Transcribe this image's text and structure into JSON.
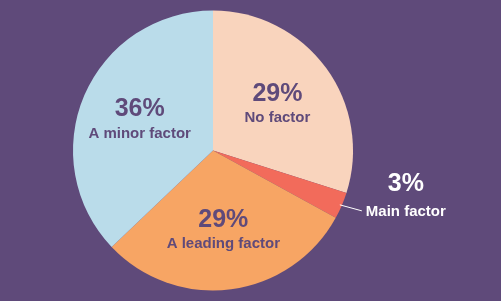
{
  "chart_data": {
    "type": "pie",
    "categories": [
      "No factor",
      "Main factor",
      "A leading factor",
      "A minor factor"
    ],
    "values": [
      29,
      3,
      29,
      36
    ],
    "value_labels": [
      "29%",
      "3%",
      "29%",
      "36%"
    ],
    "colors": [
      "#f9d4bd",
      "#f26b5b",
      "#f7a564",
      "#badcea"
    ],
    "data_labels": true
  }
}
